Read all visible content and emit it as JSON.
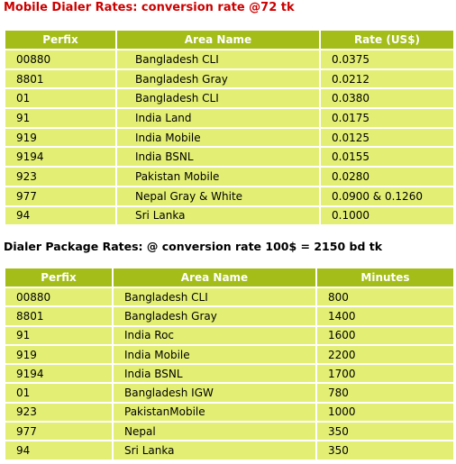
{
  "mobile": {
    "title": "Mobile Dialer Rates: conversion rate @72 tk",
    "headers": [
      "Perfix",
      "Area Name",
      "Rate (US$)"
    ],
    "rows": [
      [
        "00880",
        "Bangladesh CLI",
        "0.0375"
      ],
      [
        "8801",
        "Bangladesh Gray",
        "0.0212"
      ],
      [
        "01",
        "Bangladesh CLI",
        "0.0380"
      ],
      [
        "91",
        "India Land",
        "0.0175"
      ],
      [
        "919",
        "India Mobile",
        "0.0125"
      ],
      [
        "9194",
        "India BSNL",
        "0.0155"
      ],
      [
        "923",
        "Pakistan Mobile",
        "0.0280"
      ],
      [
        "977",
        "Nepal  Gray & White",
        "0.0900 & 0.1260"
      ],
      [
        "94",
        "Sri Lanka",
        "0.1000"
      ]
    ]
  },
  "package": {
    "title": "Dialer Package  Rates: @ conversion  rate 100$ = 2150 bd tk",
    "headers": [
      "Perfix",
      "Area Name",
      "Minutes"
    ],
    "rows": [
      [
        "00880",
        "Bangladesh CLI",
        "800"
      ],
      [
        "8801",
        "Bangladesh Gray",
        "1400"
      ],
      [
        "91",
        "India Roc",
        "1600"
      ],
      [
        "919",
        "India Mobile",
        "2200"
      ],
      [
        "9194",
        "India BSNL",
        "1700"
      ],
      [
        "01",
        "Bangladesh IGW",
        "780"
      ],
      [
        "923",
        "PakistanMobile",
        "1000"
      ],
      [
        "977",
        "Nepal",
        "350"
      ],
      [
        "94",
        "Sri Lanka",
        "350"
      ]
    ]
  }
}
